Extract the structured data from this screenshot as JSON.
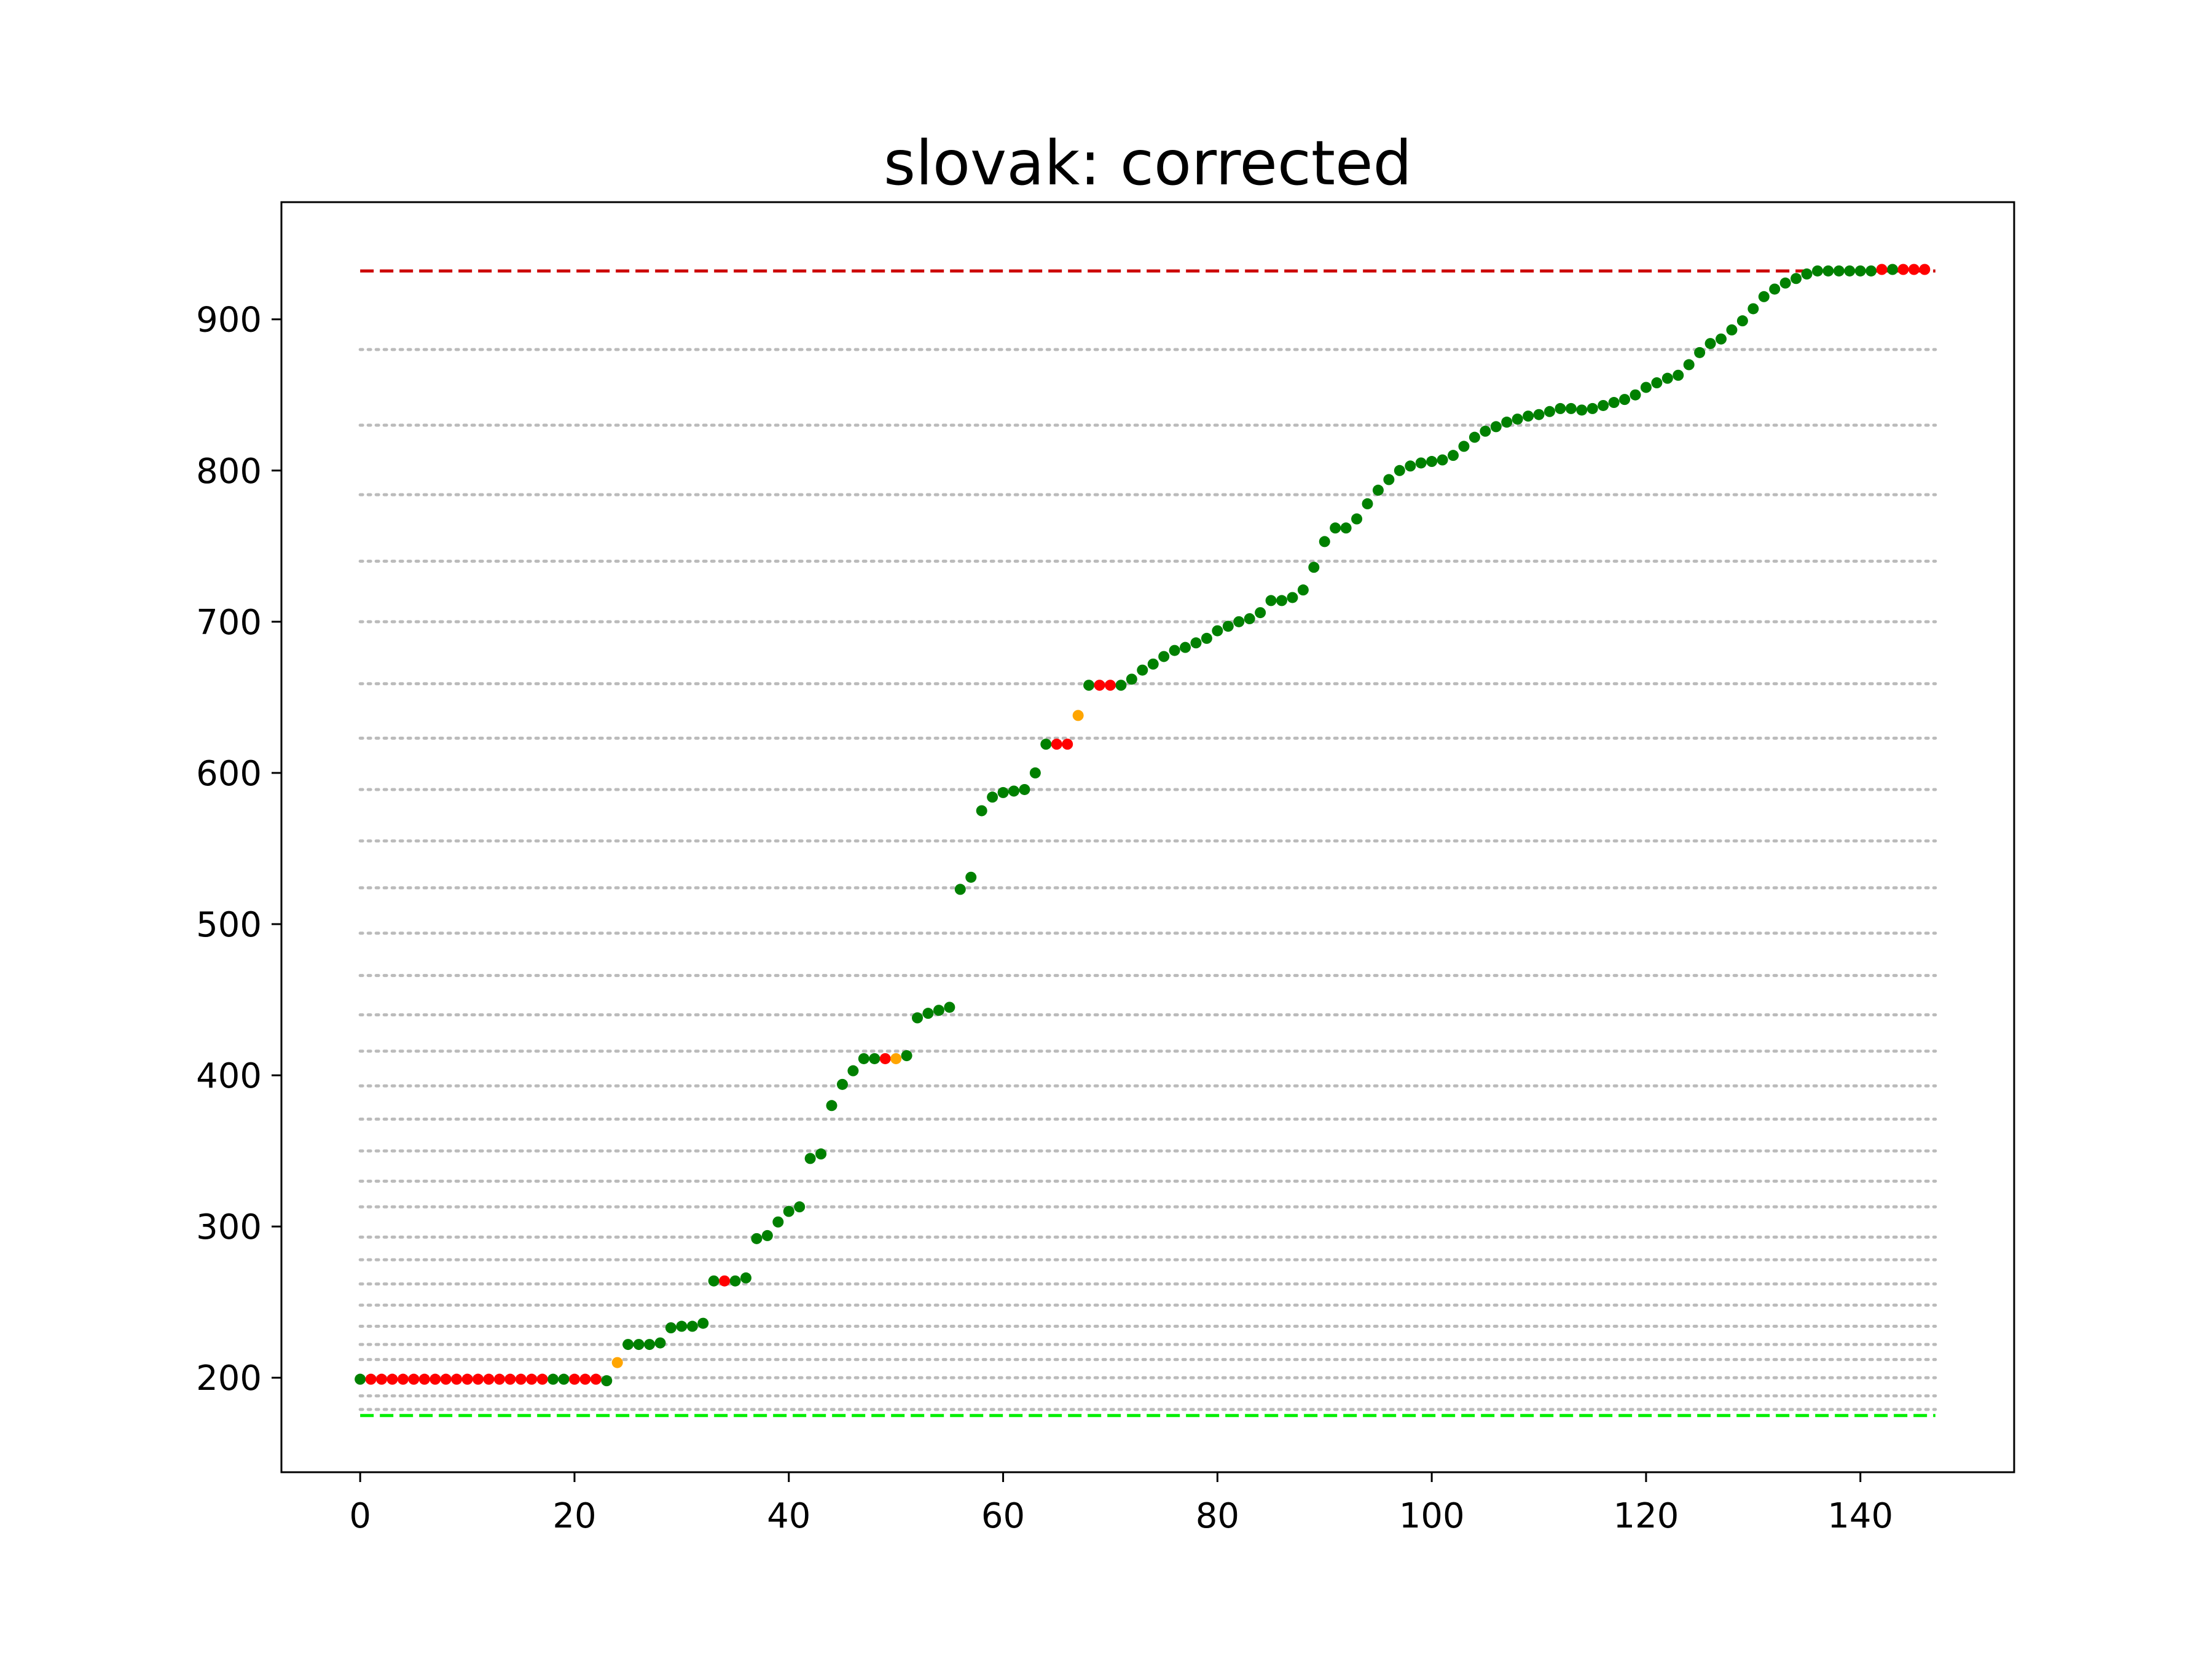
{
  "chart_data": {
    "type": "scatter",
    "title": "slovak: corrected",
    "xlabel": "",
    "ylabel": "",
    "xlim": [
      -7.35,
      154.35
    ],
    "ylim": [
      137.5,
      977.5
    ],
    "xticks": [
      0,
      20,
      40,
      60,
      80,
      100,
      120,
      140
    ],
    "yticks": [
      200,
      300,
      400,
      500,
      600,
      700,
      800,
      900
    ],
    "grid": false,
    "legend": "none",
    "reference_lines": [
      {
        "y": 932,
        "style": "dashed",
        "color": "#cc0000",
        "x_range": [
          0,
          147
        ]
      },
      {
        "y": 175,
        "style": "dashed",
        "color": "#00ee00",
        "x_range": [
          0,
          147
        ]
      }
    ],
    "dotted_levels": {
      "color": "#bbbbbb",
      "x_range": [
        0,
        147
      ],
      "y": [
        179,
        188,
        200,
        212,
        222,
        234,
        248,
        262,
        278,
        293,
        313,
        330,
        350,
        371,
        393,
        416,
        440,
        466,
        494,
        524,
        555,
        589,
        623,
        659,
        700,
        740,
        784,
        830,
        880
      ]
    },
    "series": [
      {
        "color": "green",
        "hex": "#008000",
        "x": [
          0,
          18,
          19,
          23,
          25,
          26,
          27,
          28,
          29,
          30,
          31,
          32,
          33,
          35,
          36,
          37,
          38,
          39,
          40,
          41,
          42,
          43,
          44,
          45,
          46,
          47,
          48,
          51,
          52,
          53,
          54,
          55,
          56,
          57,
          58,
          59,
          60,
          61,
          62,
          63,
          64,
          68,
          71,
          72,
          73,
          74,
          75,
          76,
          77,
          78,
          79,
          80,
          81,
          82,
          83,
          84,
          85,
          86,
          87,
          88,
          89,
          90,
          91,
          92,
          93,
          94,
          95,
          96,
          97,
          98,
          99,
          100,
          101,
          102,
          103,
          104,
          105,
          106,
          107,
          108,
          109,
          110,
          111,
          112,
          113,
          114,
          115,
          116,
          117,
          118,
          119,
          120,
          121,
          122,
          123,
          124,
          125,
          126,
          127,
          128,
          129,
          130,
          131,
          132,
          133,
          134,
          135,
          136,
          137,
          138,
          139,
          140,
          141,
          143
        ],
        "y": [
          199,
          199,
          199,
          198,
          222,
          222,
          222,
          223,
          233,
          234,
          234,
          236,
          264,
          264,
          266,
          292,
          294,
          303,
          310,
          313,
          345,
          348,
          380,
          394,
          403,
          411,
          411,
          413,
          438,
          441,
          443,
          445,
          523,
          531,
          575,
          584,
          587,
          588,
          589,
          600,
          619,
          658,
          658,
          662,
          668,
          672,
          677,
          681,
          683,
          686,
          689,
          694,
          697,
          700,
          702,
          706,
          714,
          714,
          716,
          721,
          736,
          753,
          762,
          762,
          768,
          778,
          787,
          794,
          800,
          803,
          805,
          806,
          807,
          810,
          816,
          822,
          826,
          829,
          832,
          834,
          836,
          837,
          839,
          841,
          841,
          840,
          841,
          843,
          845,
          847,
          850,
          855,
          858,
          861,
          863,
          870,
          878,
          884,
          887,
          893,
          899,
          907,
          915,
          920,
          924,
          927,
          930,
          932,
          932,
          932,
          932,
          932,
          932,
          933
        ]
      },
      {
        "color": "red",
        "hex": "#ff0000",
        "x": [
          1,
          2,
          3,
          4,
          5,
          6,
          7,
          8,
          9,
          10,
          11,
          12,
          13,
          14,
          15,
          16,
          17,
          20,
          21,
          22,
          34,
          49,
          65,
          66,
          69,
          70,
          142,
          144,
          145,
          146
        ],
        "y": [
          199,
          199,
          199,
          199,
          199,
          199,
          199,
          199,
          199,
          199,
          199,
          199,
          199,
          199,
          199,
          199,
          199,
          199,
          199,
          199,
          264,
          411,
          619,
          619,
          658,
          658,
          933,
          933,
          933,
          933
        ]
      },
      {
        "color": "orange",
        "hex": "#ffa500",
        "x": [
          24,
          50,
          67
        ],
        "y": [
          210,
          411,
          638
        ]
      }
    ]
  }
}
